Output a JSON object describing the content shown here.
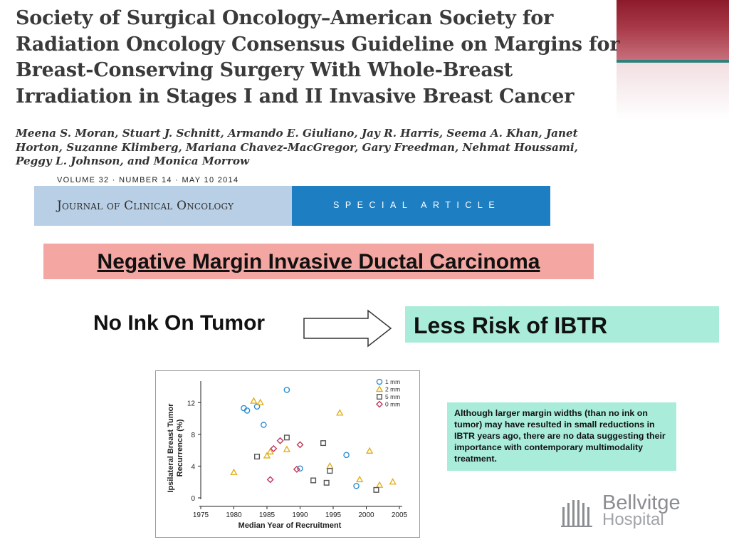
{
  "paper": {
    "title": "Society of Surgical Oncology–American Society for Radiation Oncology Consensus Guideline on Margins for Breast-Conserving Surgery With Whole-Breast Irradiation in Stages I and II Invasive Breast Cancer",
    "authors": "Meena S. Moran, Stuart J. Schnitt, Armando E. Giuliano, Jay R. Harris, Seema A. Khan, Janet Horton, Suzanne Klimberg, Mariana Chavez-MacGregor, Gary Freedman, Nehmat Houssami, Peggy L. Johnson, and Monica Morrow",
    "volume_line": "VOLUME 32 · NUMBER 14 · MAY 10 2014",
    "journal_name": "Journal of Clinical Oncology",
    "article_type": "SPECIAL ARTICLE"
  },
  "slide": {
    "banner_title": "Negative Margin Invasive Ductal Carcinoma",
    "left_label": "No Ink On Tumor",
    "result_label": "Less Risk of IBTR",
    "note": "Although larger margin widths (than no ink on tumor) may have resulted in small reductions in IBTR years ago, there are no data suggesting their importance with contemporary multimodality treatment."
  },
  "logo": {
    "line1": "Bellvitge",
    "line2": "Hospital"
  },
  "colors": {
    "banner_bg": "#f4a7a2",
    "ibtr_bg": "#a9ecd9",
    "journal_left": "#b9cfe6",
    "journal_right": "#1e7ec2",
    "series_1mm": "#2f8fd0",
    "series_2mm": "#e0b020",
    "series_5mm": "#555555",
    "series_0mm": "#c0395a"
  },
  "chart_data": {
    "type": "scatter",
    "xlabel": "Median Year of Recruitment",
    "ylabel": "Ipsilateral Breast Tumor Recurrence (%)",
    "xlim": [
      1975,
      2005
    ],
    "ylim": [
      0,
      14
    ],
    "x_ticks": [
      1975,
      1980,
      1985,
      1990,
      1995,
      2000,
      2005
    ],
    "y_ticks": [
      0,
      4,
      8,
      12
    ],
    "legend_position": "top-right",
    "series": [
      {
        "name": "1 mm",
        "marker": "circle",
        "color": "#2f8fd0",
        "points": [
          [
            1981.5,
            11.3
          ],
          [
            1982,
            11
          ],
          [
            1983.5,
            11.5
          ],
          [
            1984.5,
            9.2
          ],
          [
            1988,
            13.6
          ],
          [
            1990,
            3.7
          ],
          [
            1997,
            5.4
          ],
          [
            1998.5,
            1.5
          ]
        ]
      },
      {
        "name": "2 mm",
        "marker": "triangle",
        "color": "#e0b020",
        "points": [
          [
            1980,
            3.2
          ],
          [
            1983,
            12.2
          ],
          [
            1984,
            12
          ],
          [
            1985,
            5.3
          ],
          [
            1985.5,
            5.8
          ],
          [
            1988,
            6.1
          ],
          [
            1994.5,
            4
          ],
          [
            1996,
            10.7
          ],
          [
            1999,
            2.3
          ],
          [
            2000.5,
            5.9
          ],
          [
            2002,
            1.6
          ],
          [
            2004,
            2
          ]
        ]
      },
      {
        "name": "5 mm",
        "marker": "square",
        "color": "#555555",
        "points": [
          [
            1983.5,
            5.2
          ],
          [
            1988,
            7.6
          ],
          [
            1992,
            2.2
          ],
          [
            1993.5,
            6.9
          ],
          [
            1994,
            1.9
          ],
          [
            1994.5,
            3.4
          ],
          [
            2001.5,
            1
          ]
        ]
      },
      {
        "name": "0 mm",
        "marker": "diamond",
        "color": "#c0395a",
        "points": [
          [
            1985.5,
            2.3
          ],
          [
            1986,
            6.2
          ],
          [
            1987,
            7.2
          ],
          [
            1989.5,
            3.6
          ],
          [
            1990,
            6.7
          ]
        ]
      }
    ]
  }
}
